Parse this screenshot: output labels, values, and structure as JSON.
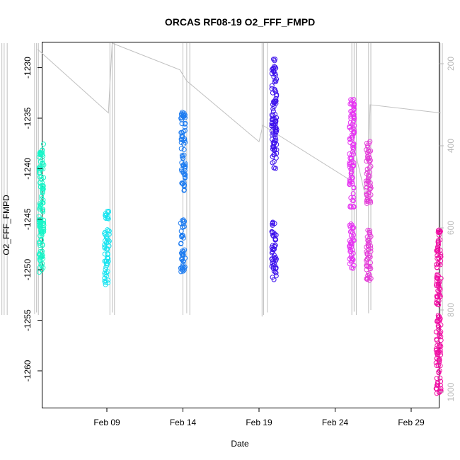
{
  "chart_data": {
    "type": "scatter",
    "title": "ORCAS RF08-19 O2_FFF_FMPD",
    "xlabel": "Date",
    "ylabel": "O2_FFF_FMPD",
    "x_ticks": [
      "Feb 09",
      "Feb 14",
      "Feb 19",
      "Feb 24",
      "Feb 29"
    ],
    "y_ticks": [
      "-1230",
      "-1235",
      "-1240",
      "-1245",
      "-1250",
      "-1255",
      "-1260"
    ],
    "y_right_ticks": [
      "200",
      "400",
      "600",
      "800",
      "1000"
    ],
    "ylim": [
      -1263.5,
      -1227.5
    ],
    "y_right_lim": [
      1040,
      150
    ],
    "secondary_color": "#c0c0c0",
    "series": [
      {
        "day": 4.5,
        "color": "#19f5c8",
        "segments": [
          [
            -1250.3,
            -1245.0
          ],
          [
            -1246.5,
            -1237.5
          ]
        ]
      },
      {
        "day": 8.8,
        "color": "#19e4f0",
        "segments": [
          [
            -1251.5,
            -1245.8
          ],
          [
            -1245.0,
            -1244.2
          ]
        ]
      },
      {
        "day": 13.8,
        "color": "#1e7cf0",
        "segments": [
          [
            -1250.2,
            -1245.0
          ],
          [
            -1242.2,
            -1234.3
          ]
        ]
      },
      {
        "day": 19.8,
        "color": "#3d12ec",
        "segments": [
          [
            -1251.0,
            -1245.2
          ],
          [
            -1240.0,
            -1229.0
          ]
        ]
      },
      {
        "day": 24.9,
        "color": "#e634f2",
        "segments": [
          [
            -1250.0,
            -1245.3
          ],
          [
            -1244.0,
            -1233.0
          ]
        ]
      },
      {
        "day": 26.0,
        "color": "#e43cd8",
        "segments": [
          [
            -1251.2,
            -1245.8
          ],
          [
            -1243.5,
            -1237.3
          ]
        ]
      },
      {
        "day": 30.6,
        "color": "#f010a4",
        "segments": [
          [
            -1262.3,
            -1254.5
          ],
          [
            -1253.5,
            -1245.8
          ]
        ]
      }
    ],
    "altitude_lines": [
      {
        "x": 1.9,
        "top": 150,
        "bottom": 812
      },
      {
        "x": 2.05,
        "top": 150,
        "bottom": 812
      },
      {
        "x": 2.25,
        "top": 150,
        "bottom": 812
      },
      {
        "x": 4.05,
        "top": 150,
        "bottom": 810
      },
      {
        "x": 4.18,
        "top": 150,
        "bottom": 806
      },
      {
        "x": 4.3,
        "top": 150,
        "bottom": 812
      },
      {
        "x": 9.0,
        "top": 150,
        "bottom": 812
      },
      {
        "x": 9.15,
        "top": 150,
        "bottom": 806
      },
      {
        "x": 9.3,
        "top": 150,
        "bottom": 812
      },
      {
        "x": 13.8,
        "top": 150,
        "bottom": 812
      },
      {
        "x": 14.05,
        "top": 150,
        "bottom": 808
      },
      {
        "x": 14.25,
        "top": 150,
        "bottom": 812
      },
      {
        "x": 19.0,
        "top": 150,
        "bottom": 816
      },
      {
        "x": 19.1,
        "top": 150,
        "bottom": 812
      },
      {
        "x": 19.35,
        "top": 150,
        "bottom": 806
      },
      {
        "x": 24.9,
        "top": 150,
        "bottom": 812
      },
      {
        "x": 25.05,
        "top": 150,
        "bottom": 804
      },
      {
        "x": 25.2,
        "top": 150,
        "bottom": 812
      },
      {
        "x": 26.0,
        "top": 150,
        "bottom": 808
      },
      {
        "x": 26.15,
        "top": 150,
        "bottom": 800
      },
      {
        "x": 30.7,
        "top": 150,
        "bottom": 816
      },
      {
        "x": 30.85,
        "top": 150,
        "bottom": 812
      }
    ],
    "transit_path": [
      [
        4.25,
        165
      ],
      [
        8.9,
        320
      ],
      [
        9.15,
        150
      ],
      [
        13.6,
        215
      ],
      [
        14.05,
        242
      ],
      [
        18.8,
        390
      ],
      [
        19.05,
        350
      ],
      [
        24.85,
        485
      ],
      [
        25.1,
        410
      ],
      [
        25.9,
        540
      ],
      [
        26.1,
        300
      ],
      [
        30.75,
        320
      ]
    ]
  }
}
